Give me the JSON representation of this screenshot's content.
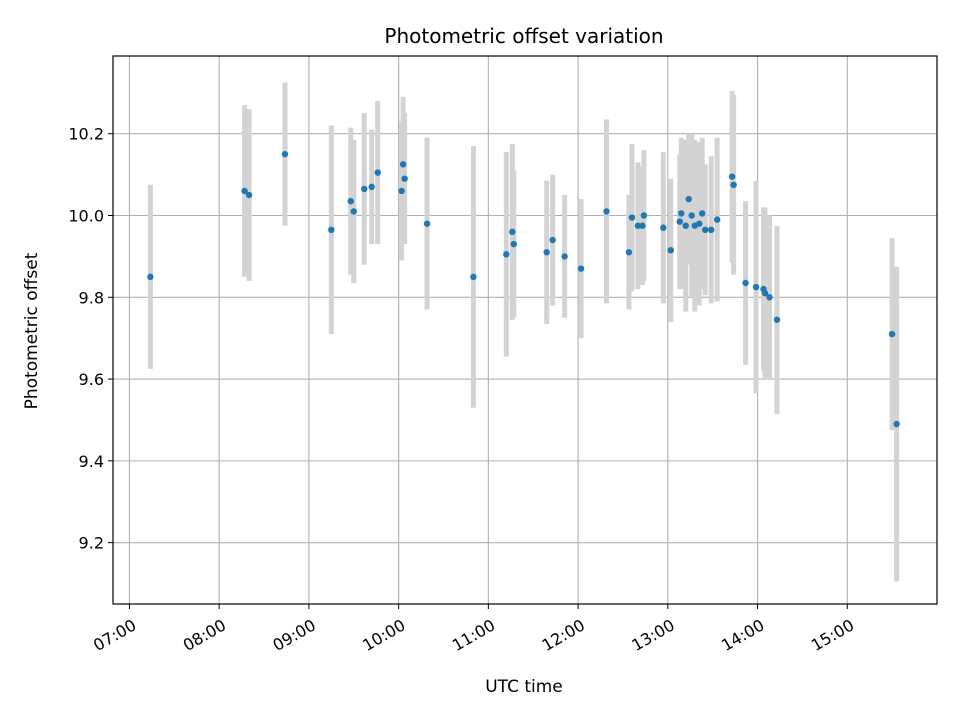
{
  "chart_data": {
    "type": "scatter",
    "title": "Photometric offset variation",
    "xlabel": "UTC time",
    "ylabel": "Photometric offset",
    "xlim": [
      "06:49",
      "16:00"
    ],
    "ylim": [
      9.05,
      10.39
    ],
    "x_ticks": [
      "07:00",
      "08:00",
      "09:00",
      "10:00",
      "11:00",
      "12:00",
      "13:00",
      "14:00",
      "15:00"
    ],
    "y_ticks": [
      9.2,
      9.4,
      9.6,
      9.8,
      10.0,
      10.2
    ],
    "grid": true,
    "colors": {
      "point": "#1f77b4",
      "errorbar": "#d3d3d3",
      "grid": "#b0b0b0"
    },
    "series": [
      {
        "x": [
          "07:14",
          "08:17",
          "08:20",
          "08:44",
          "09:15",
          "09:28",
          "09:30",
          "09:37",
          "09:42",
          "09:46",
          "10:02",
          "10:03",
          "10:04",
          "10:19",
          "10:50",
          "11:12",
          "11:16",
          "11:17",
          "11:39",
          "11:43",
          "11:51",
          "12:02",
          "12:19",
          "12:34",
          "12:36",
          "12:40",
          "12:43",
          "12:44",
          "12:57",
          "13:02",
          "13:08",
          "13:09",
          "13:12",
          "13:14",
          "13:16",
          "13:18",
          "13:21",
          "13:23",
          "13:25",
          "13:29",
          "13:33",
          "13:43",
          "13:44",
          "13:52",
          "13:59",
          "14:04",
          "14:05",
          "14:08",
          "14:13",
          "15:30",
          "15:33"
        ],
        "y": [
          9.85,
          10.06,
          10.05,
          10.15,
          9.965,
          10.035,
          10.01,
          10.065,
          10.07,
          10.105,
          10.06,
          10.125,
          10.09,
          9.98,
          9.85,
          9.905,
          9.96,
          9.93,
          9.91,
          9.94,
          9.9,
          9.87,
          10.01,
          9.91,
          9.995,
          9.975,
          9.975,
          10.0,
          9.97,
          9.915,
          9.985,
          10.005,
          9.975,
          10.04,
          10.0,
          9.975,
          9.98,
          10.005,
          9.965,
          9.965,
          9.99,
          10.095,
          10.075,
          9.835,
          9.825,
          9.82,
          9.81,
          9.8,
          9.745,
          9.71,
          9.49
        ],
        "yerr": [
          0.225,
          0.21,
          0.21,
          0.175,
          0.255,
          0.18,
          0.175,
          0.185,
          0.14,
          0.175,
          0.17,
          0.165,
          0.16,
          0.21,
          0.32,
          0.25,
          0.215,
          0.18,
          0.175,
          0.16,
          0.15,
          0.17,
          0.225,
          0.14,
          0.18,
          0.155,
          0.145,
          0.16,
          0.185,
          0.175,
          0.165,
          0.185,
          0.21,
          0.16,
          0.2,
          0.21,
          0.2,
          0.185,
          0.16,
          0.18,
          0.2,
          0.21,
          0.22,
          0.2,
          0.26,
          0.2,
          0.21,
          0.2,
          0.23,
          0.235,
          0.385
        ]
      }
    ]
  }
}
